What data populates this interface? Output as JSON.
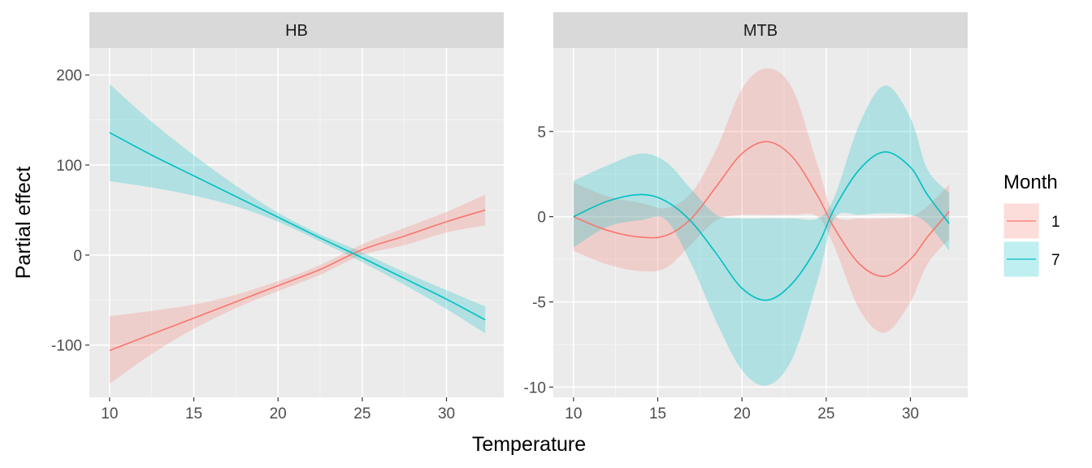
{
  "chart_data": {
    "type": "line",
    "xlabel": "Temperature",
    "ylabel": "Partial effect",
    "legend": {
      "title": "Month",
      "placement": "right",
      "entries": [
        {
          "label": "1",
          "color": "#F8766D"
        },
        {
          "label": "7",
          "color": "#00BFC4"
        }
      ]
    },
    "grid": true,
    "panels": [
      {
        "strip": "HB",
        "xlim": [
          8.8,
          33.4
        ],
        "ylim": [
          -158,
          230
        ],
        "xticks": [
          10,
          15,
          20,
          25,
          30
        ],
        "xtick_labels": [
          "10",
          "15",
          "20",
          "25",
          "30"
        ],
        "yticks": [
          -100,
          0,
          100,
          200
        ],
        "ytick_labels": [
          "-100",
          "0",
          "100",
          "200"
        ],
        "series": [
          {
            "name": "1",
            "color": "#F8766D",
            "x": [
              10,
              12.5,
              15,
              17.5,
              20,
              22.5,
              25,
              27.5,
              30,
              32.3
            ],
            "y": [
              -106,
              -88,
              -70,
              -52,
              -34,
              -16,
              6,
              21,
              37,
              50
            ],
            "lower": [
              -143,
              -110,
              -82,
              -59,
              -40,
              -22,
              0,
              11,
              25,
              33
            ],
            "upper": [
              -68,
              -62,
              -55,
              -44,
              -29,
              -11,
              12,
              30,
              48,
              67
            ]
          },
          {
            "name": "7",
            "color": "#00BFC4",
            "x": [
              10,
              12.5,
              15,
              17.5,
              20,
              22.5,
              25,
              27.5,
              30,
              32.3
            ],
            "y": [
              136,
              111,
              88,
              65,
              42,
              19,
              -3,
              -26,
              -49,
              -72
            ],
            "lower": [
              82,
              75,
              66,
              54,
              37,
              15,
              -8,
              -33,
              -60,
              -87
            ],
            "upper": [
              190,
              148,
              111,
              77,
              47,
              23,
              3,
              -19,
              -39,
              -57
            ]
          }
        ]
      },
      {
        "strip": "MTB",
        "xlim": [
          8.8,
          33.4
        ],
        "ylim": [
          -10.6,
          9.9
        ],
        "xticks": [
          10,
          15,
          20,
          25,
          30
        ],
        "xtick_labels": [
          "10",
          "15",
          "20",
          "25",
          "30"
        ],
        "yticks": [
          -10,
          -5,
          0,
          5
        ],
        "ytick_labels": [
          "-10",
          "-5",
          "0",
          "5"
        ],
        "series": [
          {
            "name": "1",
            "color": "#F8766D",
            "x": [
              10,
              12,
              14,
              15.5,
              17,
              18.5,
              20,
              21.5,
              23,
              24.5,
              25.5,
              27,
              28.5,
              30,
              31,
              32.3
            ],
            "y": [
              0,
              -0.8,
              -1.2,
              -1.1,
              -0.1,
              1.8,
              3.7,
              4.4,
              3.5,
              1.2,
              -0.7,
              -2.8,
              -3.5,
              -2.5,
              -1.2,
              0.3
            ],
            "lower": [
              -2,
              -2.8,
              -3.2,
              -3,
              -1.6,
              -0.2,
              0.1,
              0.1,
              0.1,
              0,
              -1.8,
              -5.5,
              -6.8,
              -5,
              -2.8,
              -1.3
            ],
            "upper": [
              2,
              1.2,
              0.8,
              0.5,
              1.4,
              4,
              7.5,
              8.7,
              7.5,
              3,
              0.1,
              -0.1,
              -0.1,
              0,
              0.6,
              1.9
            ]
          },
          {
            "name": "7",
            "color": "#00BFC4",
            "x": [
              10,
              12,
              14,
              15.5,
              17,
              18.5,
              20,
              21.5,
              23,
              24.5,
              25.5,
              27,
              28.5,
              30,
              31,
              32.3
            ],
            "y": [
              0,
              0.9,
              1.3,
              0.9,
              -0.3,
              -2.2,
              -4.2,
              -4.9,
              -3.9,
              -1.7,
              0.5,
              2.8,
              3.8,
              2.9,
              1.3,
              -0.4
            ],
            "lower": [
              -1.8,
              -0.6,
              -0.2,
              -0.2,
              -2.8,
              -6.2,
              -9,
              -9.9,
              -8.3,
              -3.7,
              -0.1,
              0.1,
              0.2,
              0.1,
              -0.4,
              -2
            ],
            "upper": [
              2.1,
              3,
              3.7,
              3.2,
              1.6,
              0.1,
              -0.1,
              -0.1,
              -0.1,
              -0.1,
              1.2,
              5.5,
              7.7,
              5.8,
              2.8,
              1.4
            ]
          }
        ]
      }
    ]
  }
}
